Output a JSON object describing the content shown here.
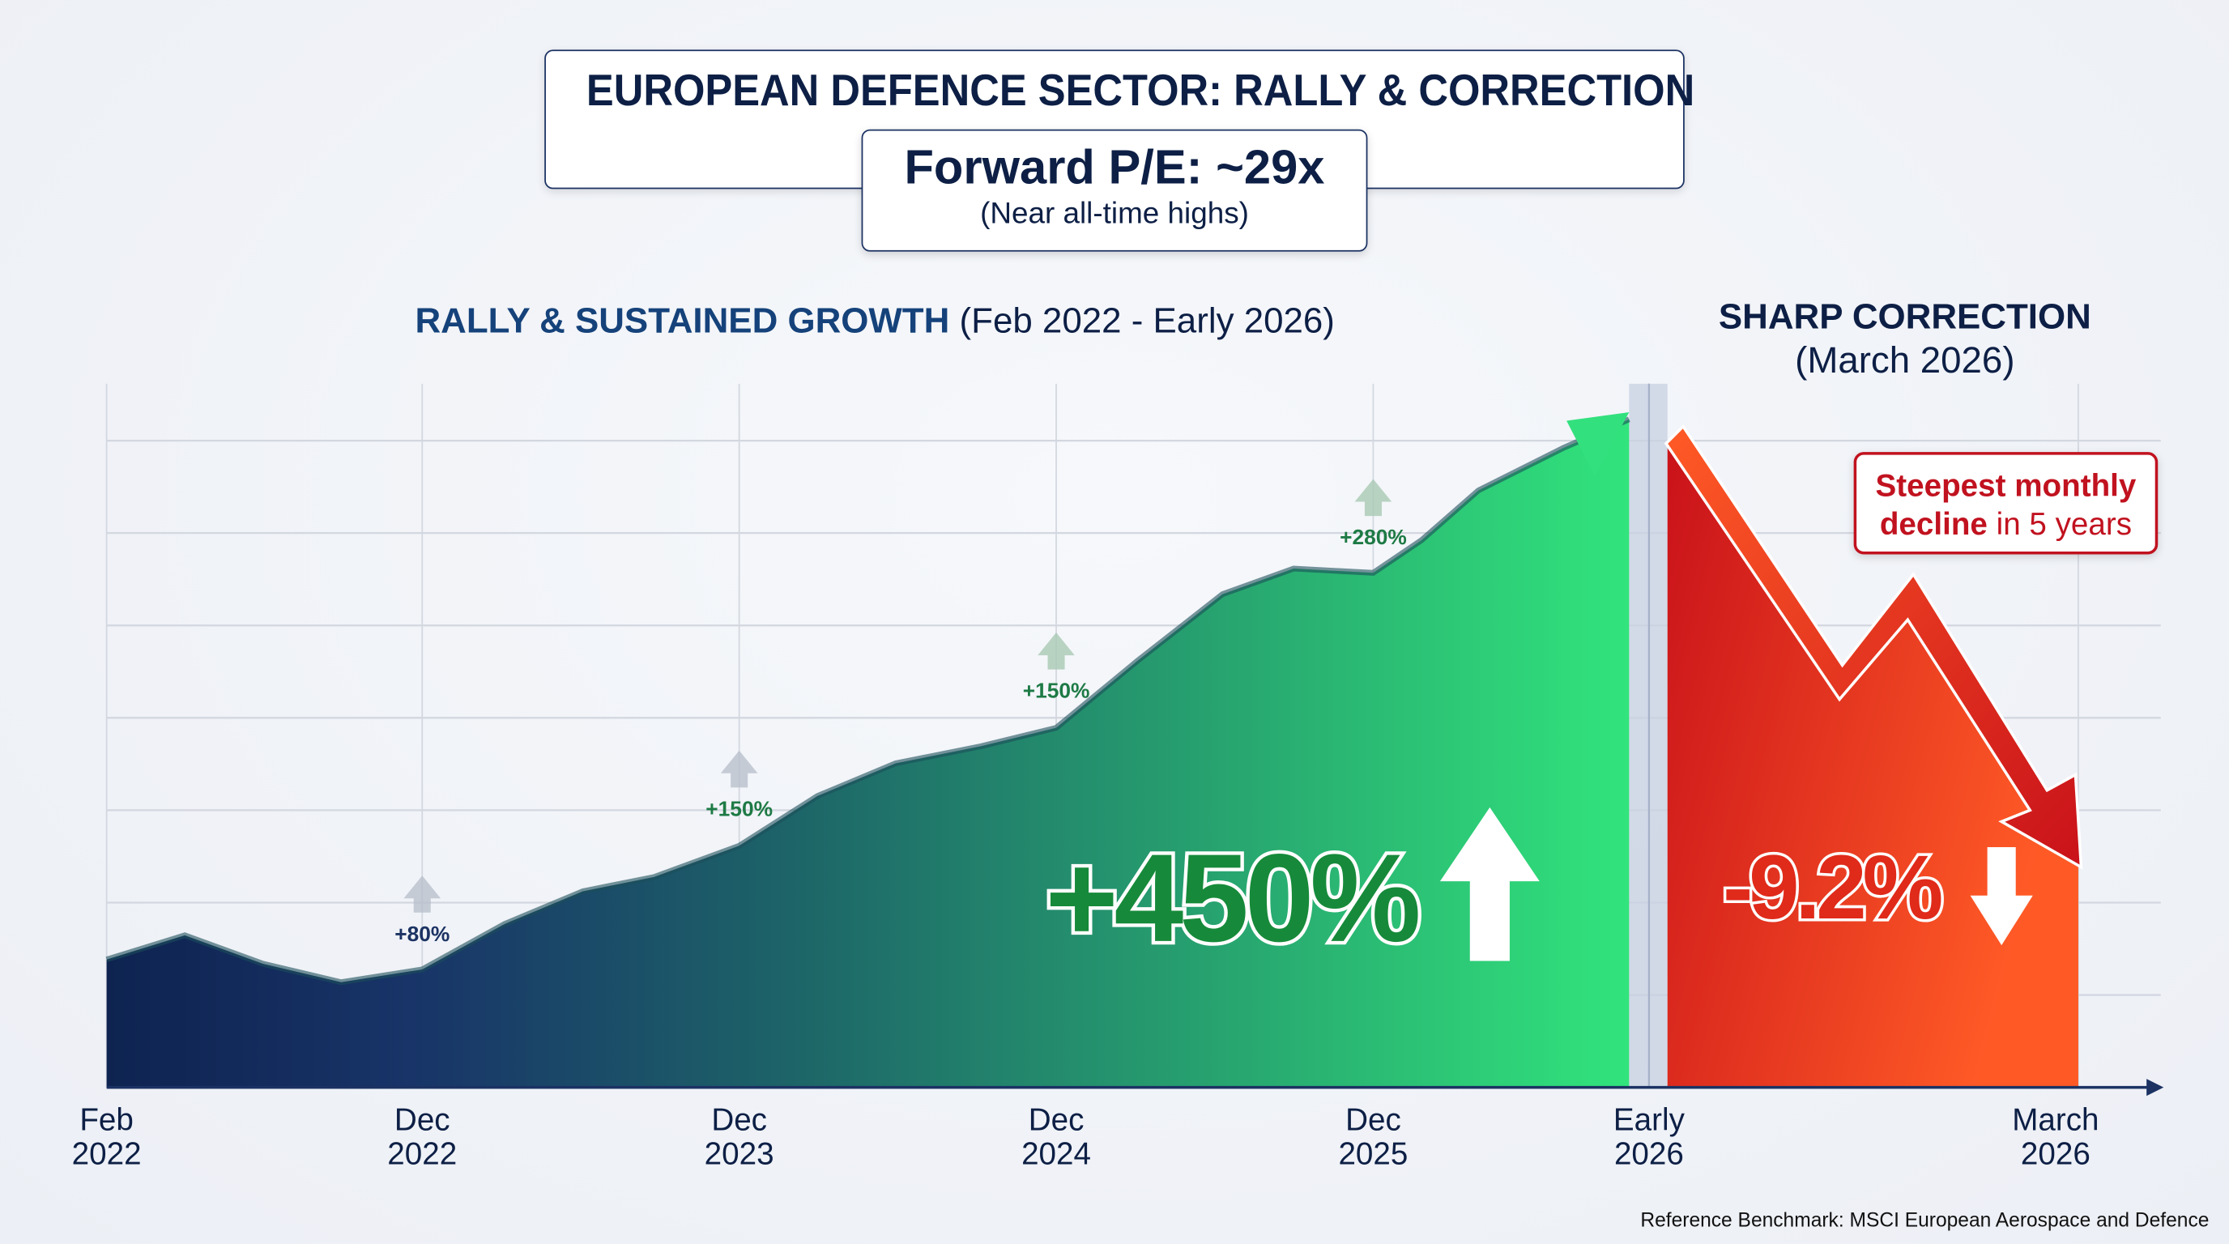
{
  "title": "EUROPEAN DEFENCE SECTOR: RALLY & CORRECTION",
  "valuation": {
    "label": "Forward P/E: ~29x",
    "note": "(Near all-time highs)"
  },
  "rally_section": {
    "title": "RALLY & SUSTAINED GROWTH",
    "period": "(Feb 2022 - Early 2026)"
  },
  "correction_section": {
    "title": "SHARP CORRECTION",
    "period": "(March 2026)"
  },
  "callout": {
    "bold": "Steepest monthly",
    "bold2": "decline",
    "rest": " in 5 years"
  },
  "footer": "Reference Benchmark: MSCI European Aerospace and Defence",
  "colors": {
    "navy": "#0d1f45",
    "green": "#2fe07a",
    "red": "#c1121f",
    "orange": "#ff5a24"
  },
  "chart_data": {
    "type": "area",
    "x_ticks": [
      {
        "line1": "Feb",
        "line2": "2022"
      },
      {
        "line1": "Dec",
        "line2": "2022"
      },
      {
        "line1": "Dec",
        "line2": "2023"
      },
      {
        "line1": "Dec",
        "line2": "2024"
      },
      {
        "line1": "Dec",
        "line2": "2025"
      },
      {
        "line1": "Early",
        "line2": "2026"
      },
      {
        "line1": "March",
        "line2": "2026"
      }
    ],
    "y_axis": "none",
    "grid": true,
    "annotations": [
      {
        "x": "Dec 2022",
        "label": "+80%"
      },
      {
        "x": "Dec 2023",
        "label": "+150%"
      },
      {
        "x": "Dec 2024",
        "label": "+150%"
      },
      {
        "x": "Dec 2025",
        "label": "+280%"
      }
    ],
    "total_rally": "+450%",
    "correction": "-9.2%"
  }
}
